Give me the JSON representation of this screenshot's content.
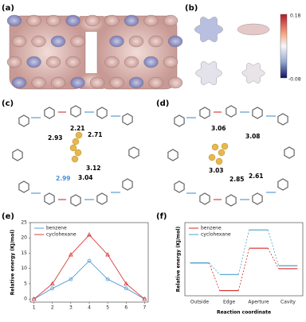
{
  "panel_labels": [
    "(a)",
    "(b)",
    "(c)",
    "(d)",
    "(e)",
    "(f)"
  ],
  "colorbar": {
    "max": "0.18",
    "min": "-0.08"
  },
  "panel_c_distances": [
    "2.21",
    "2.93",
    "2.71",
    "3.12",
    "3.04",
    "2.99"
  ],
  "panel_d_distances": [
    "3.06",
    "3.08",
    "3.03",
    "2.85",
    "2.61"
  ],
  "chart_data": [
    {
      "type": "line",
      "ylabel": "Relative energy (KJ/mol)",
      "x": [
        1,
        2,
        3,
        4,
        5,
        6,
        7
      ],
      "xlim": [
        0.8,
        7.2
      ],
      "xticks": [
        1,
        2,
        3,
        4,
        5,
        6,
        7
      ],
      "ylim": [
        -1,
        25
      ],
      "yticks": [
        0,
        5,
        10,
        15,
        20,
        25
      ],
      "series": [
        {
          "name": "benzene",
          "color": "#5b9bd5",
          "marker": "circle",
          "values": [
            0,
            3.5,
            6.5,
            12.5,
            6.5,
            3.5,
            0
          ]
        },
        {
          "name": "cyclohexane",
          "color": "#d9423f",
          "marker": "triangle",
          "values": [
            0,
            5,
            14.5,
            21,
            14.5,
            5,
            0
          ]
        }
      ],
      "legend": "upper-left"
    },
    {
      "type": "level",
      "ylabel": "Relative energy (KJ/mol)",
      "xlabel": "Reaction coordinate",
      "categories": [
        "Outside",
        "Edge",
        "Aperture",
        "Cavity"
      ],
      "ylim": [
        -45,
        55
      ],
      "series": [
        {
          "name": "benzene",
          "color": "#d62728",
          "values": [
            0,
            -38,
            20,
            -8
          ]
        },
        {
          "name": "cyclohexane",
          "color": "#4aa3c8",
          "values": [
            0,
            -16,
            45,
            -4
          ]
        }
      ],
      "legend": "upper-left"
    }
  ]
}
